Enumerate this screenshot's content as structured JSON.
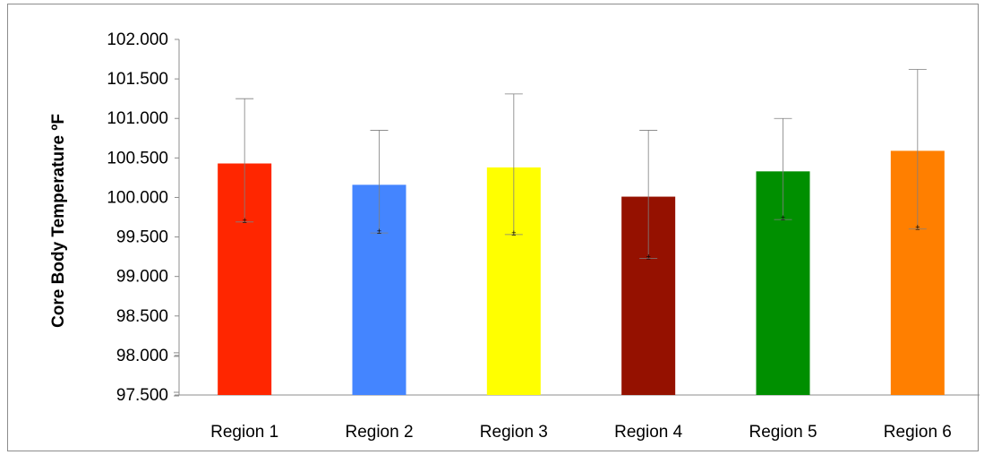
{
  "chart_data": {
    "type": "bar",
    "title": "",
    "xlabel": "",
    "ylabel": "Core Body Temperature ºF",
    "ylim": [
      97.5,
      102.0
    ],
    "yticks": [
      "97.500",
      "98.000",
      "98.500",
      "99.000",
      "99.500",
      "100.000",
      "100.500",
      "101.000",
      "101.500",
      "102.000"
    ],
    "y_axis_break": true,
    "grid": false,
    "legend": "none",
    "categories": [
      "Region 1",
      "Region 2",
      "Region 3",
      "Region 4",
      "Region 5",
      "Region 6"
    ],
    "values": [
      100.43,
      100.16,
      100.38,
      100.01,
      100.33,
      100.59
    ],
    "error_upper": [
      101.25,
      100.85,
      101.31,
      100.85,
      101.0,
      101.62
    ],
    "error_lower": [
      99.69,
      99.55,
      99.53,
      99.23,
      99.72,
      99.6
    ],
    "colors": [
      "#ff2600",
      "#4485ff",
      "#ffff00",
      "#951100",
      "#008f00",
      "#ff7f00"
    ],
    "data_labels": [
      "±",
      "±",
      "±",
      "±",
      "±",
      "±"
    ]
  }
}
